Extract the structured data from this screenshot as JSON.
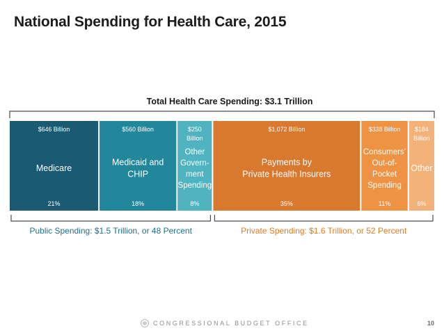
{
  "slide": {
    "title": "National Spending for Health Care, 2015",
    "footer_org": "CONGRESSIONAL BUDGET OFFICE",
    "page_number": "10"
  },
  "chart_data": {
    "type": "bar",
    "orientation": "horizontal-stacked",
    "title": "Total Health Care Spending: $3.1 Trillion",
    "unit": "billions of dollars",
    "total_label": "$3.1 Trillion",
    "segments": [
      {
        "label": [
          "Medicare"
        ],
        "value": 646,
        "value_label": [
          "$646 Billion"
        ],
        "percent_label": "21%",
        "group": "public",
        "color": "#1a5b73"
      },
      {
        "label": [
          "Medicaid and",
          "CHIP"
        ],
        "value": 560,
        "value_label": [
          "$560 Billion"
        ],
        "percent_label": "18%",
        "group": "public",
        "color": "#22879b"
      },
      {
        "label": [
          "Other",
          "Govern-",
          "ment",
          "Spending"
        ],
        "value": 250,
        "value_label": [
          "$250",
          "Billion"
        ],
        "percent_label": "8%",
        "group": "public",
        "color": "#4fb3c0"
      },
      {
        "label": [
          "Payments by",
          "Private Health Insurers"
        ],
        "value": 1072,
        "value_label": [
          "$1,072 Billion"
        ],
        "percent_label": "35%",
        "group": "private",
        "color": "#d9782f"
      },
      {
        "label": [
          "Consumers’",
          "Out-of-",
          "Pocket",
          "Spending"
        ],
        "value": 338,
        "value_label": [
          "$338 Billion"
        ],
        "percent_label": "11%",
        "group": "private",
        "color": "#ee9244"
      },
      {
        "label": [
          "Other"
        ],
        "value": 184,
        "value_label": [
          "$184",
          "Billion"
        ],
        "percent_label": "6%",
        "group": "private",
        "color": "#f3b27a"
      }
    ],
    "groups": [
      {
        "key": "public",
        "label": "Public Spending: $1.5 Trillion, or 48 Percent",
        "color": "#1d6f8a"
      },
      {
        "key": "private",
        "label": "Private Spending: $1.6 Trillion, or 52 Percent",
        "color": "#e07b22"
      }
    ]
  }
}
